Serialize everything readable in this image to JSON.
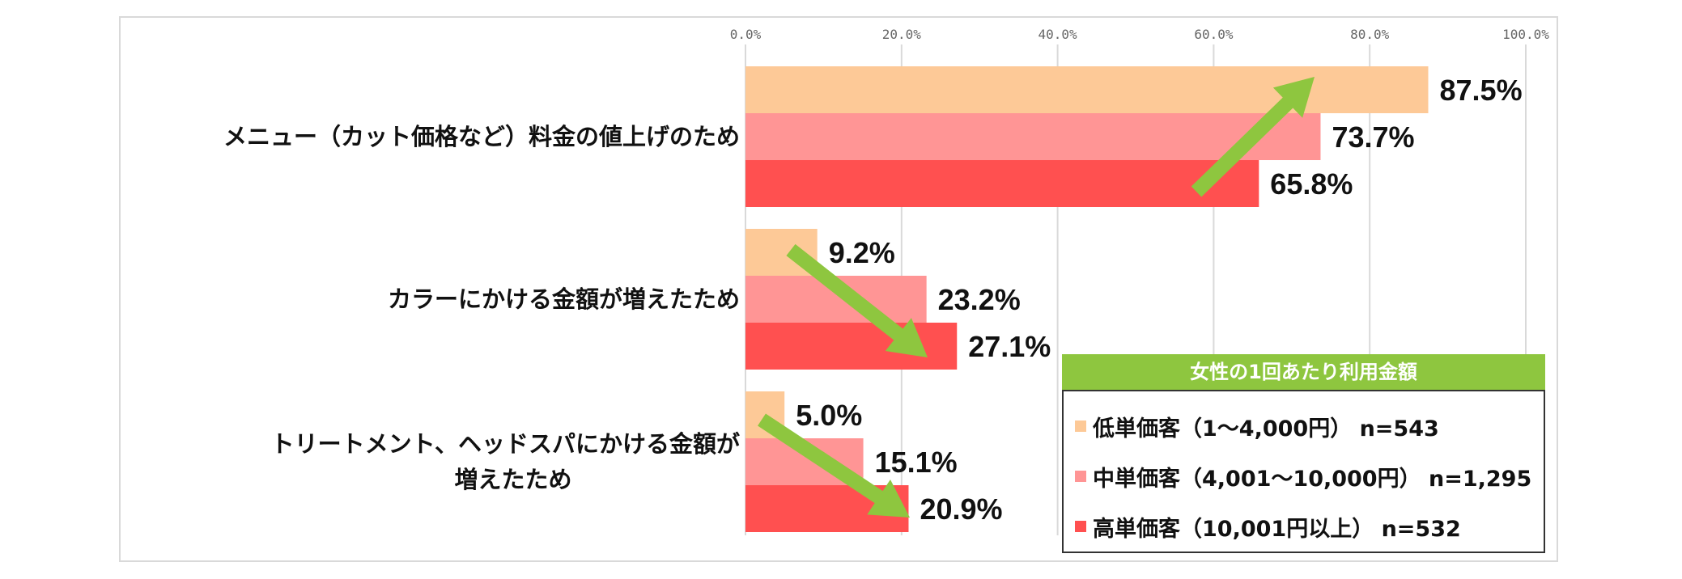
{
  "chart_data": {
    "type": "bar",
    "orientation": "horizontal",
    "categories": [
      [
        "メニュー（カット価格など）料金の値上げのため"
      ],
      [
        "カラーにかける金額が増えたため"
      ],
      [
        "トリートメント、ヘッドスパにかける金額が",
        "増えたため"
      ]
    ],
    "series": [
      {
        "name": "低単価客（1～4,000円） n=543",
        "values": [
          87.5,
          9.2,
          5.0
        ],
        "labels": [
          "87.5%",
          "9.2%",
          "5.0%"
        ],
        "color": "#fdc997"
      },
      {
        "name": "中単価客（4,001～10,000円） n=1,295",
        "values": [
          73.7,
          23.2,
          15.1
        ],
        "labels": [
          "73.7%",
          "23.2%",
          "15.1%"
        ],
        "color": "#ff9595"
      },
      {
        "name": "高単価客（10,001円以上） n=532",
        "values": [
          65.8,
          27.1,
          20.9
        ],
        "labels": [
          "65.8%",
          "27.1%",
          "20.9%"
        ],
        "color": "#ff5050"
      }
    ],
    "xlim": [
      0,
      100
    ],
    "ticks": [
      0,
      20,
      40,
      60,
      80,
      100
    ],
    "tick_labels": [
      "0.0%",
      "20.0%",
      "40.0%",
      "60.0%",
      "80.0%",
      "100.0%"
    ],
    "grid": true,
    "legend_title": "女性の1回あたり利用金額",
    "legend_position": "bottom-right",
    "arrow_color": "#8ec63f",
    "annotations": "arrows"
  }
}
